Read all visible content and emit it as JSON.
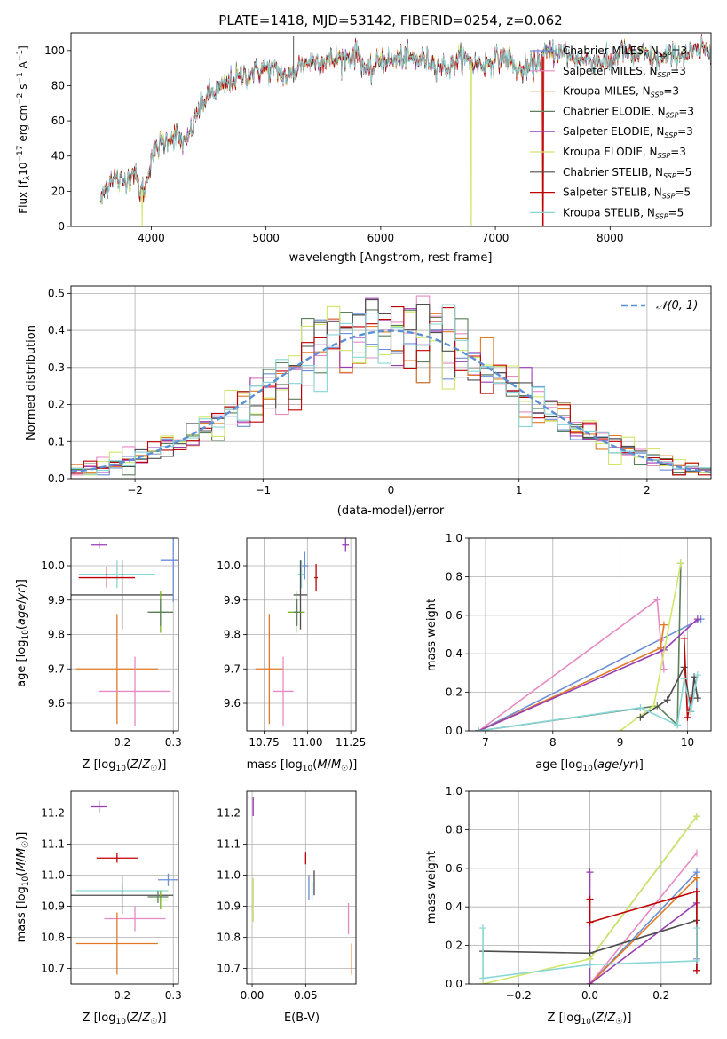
{
  "figure": {
    "title": "PLATE=1418, MJD=53142, FIBERID=0254, z=0.062"
  },
  "colors": {
    "chabrier_miles": "#6a8fd8",
    "salpeter_miles": "#e78ac3",
    "kroupa_miles": "#e07b24",
    "chabrier_elodie": "#5c7f5c",
    "salpeter_elodie": "#9a3db3",
    "kroupa_elodie": "#cfe86a",
    "chabrier_stelib": "#4d4d4d",
    "salpeter_stelib": "#c00000",
    "kroupa_stelib": "#88d6d6",
    "normal_curve": "#5b8fd6",
    "lime": "#7ab51d"
  },
  "chart_data": [
    {
      "id": "spectrum",
      "type": "line",
      "title": "PLATE=1418, MJD=53142, FIBERID=0254, z=0.062",
      "xlabel": "wavelength [Angstrom, rest frame]",
      "ylabel": "Flux [f_λ10^-17 erg cm^-2 s^-1 A^-1]",
      "xlim": [
        3300,
        8880
      ],
      "ylim": [
        0,
        110
      ],
      "xticks": [
        4000,
        5000,
        6000,
        7000,
        8000
      ],
      "yticks": [
        0,
        20,
        40,
        60,
        80,
        100
      ],
      "legend_position": "top-right",
      "legend": [
        "Chabrier MILES, N_SSP=3",
        "Salpeter MILES, N_SSP=3",
        "Kroupa MILES, N_SSP=3",
        "Chabrier ELODIE, N_SSP=3",
        "Salpeter ELODIE, N_SSP=3",
        "Kroupa ELODIE, N_SSP=3",
        "Chabrier STELIB, N_SSP=5",
        "Salpeter STELIB, N_SSP=5",
        "Kroupa STELIB, N_SSP=5"
      ],
      "continuum": {
        "x": [
          3560,
          3650,
          3750,
          3850,
          3900,
          3950,
          4000,
          4100,
          4200,
          4300,
          4400,
          4500,
          4600,
          4700,
          4800,
          4900,
          5000,
          5100,
          5200,
          5300,
          5400,
          5500,
          5600,
          5700,
          5800,
          5900,
          6000,
          6100,
          6200,
          6300,
          6400,
          6500,
          6600,
          6700,
          6800,
          6900,
          7000,
          7100,
          7200,
          7300,
          7400,
          7500,
          7600,
          7700,
          7800,
          7900,
          8000,
          8100,
          8200,
          8300,
          8400,
          8500,
          8600,
          8700,
          8800,
          8880
        ],
        "y": [
          15,
          28,
          25,
          32,
          20,
          22,
          40,
          48,
          52,
          46,
          65,
          75,
          78,
          82,
          86,
          88,
          90,
          88,
          84,
          92,
          94,
          94,
          95,
          96,
          98,
          86,
          96,
          94,
          96,
          95,
          95,
          92,
          90,
          96,
          93,
          92,
          95,
          96,
          88,
          90,
          96,
          100,
          98,
          96,
          95,
          94,
          92,
          100,
          96,
          98,
          94,
          96,
          98,
          98,
          100,
          100
        ]
      },
      "dropouts": [
        {
          "series": "Kroupa ELODIE, N_SSP=3",
          "x": 3920
        },
        {
          "series": "Kroupa ELODIE, N_SSP=3",
          "x": 6790
        },
        {
          "series": "Salpeter STELIB, N_SSP=5",
          "x": 7415
        }
      ],
      "spike": {
        "x": 5240,
        "y": 108
      }
    },
    {
      "id": "residuals",
      "type": "histogram",
      "xlabel": "(data-model)/error",
      "ylabel": "Normed distribution",
      "xlim": [
        -2.5,
        2.5
      ],
      "ylim": [
        0,
        0.52
      ],
      "xticks": [
        -2,
        -1,
        0,
        1,
        2
      ],
      "yticks": [
        0.0,
        0.1,
        0.2,
        0.3,
        0.4,
        0.5
      ],
      "bin_width": 0.1,
      "legend": [
        "𝒩(0, 1)"
      ],
      "legend_position": "top-right",
      "grid": true
    },
    {
      "id": "age_vs_Z",
      "type": "errorbar",
      "xlabel": "Z [log10(Z/Z☉)]",
      "ylabel": "age  [log10(age/yr)]",
      "xlim": [
        0.1,
        0.31
      ],
      "ylim": [
        9.52,
        10.08
      ],
      "xticks": [
        0.2,
        0.3
      ],
      "yticks": [
        9.6,
        9.7,
        9.8,
        9.9,
        10.0
      ],
      "points": [
        {
          "series": "salpeter_elodie",
          "x": 0.155,
          "y": 10.06,
          "xerr": 0.015,
          "yerr": 0.01
        },
        {
          "series": "kroupa_stelib",
          "x": 0.19,
          "y": 9.975,
          "xerr": 0.075,
          "yerr": 0.04
        },
        {
          "series": "salpeter_stelib",
          "x": 0.17,
          "y": 9.965,
          "xerr": 0.055,
          "yerr": 0.03
        },
        {
          "series": "chabrier_stelib",
          "x": 0.2,
          "y": 9.915,
          "xerr": 0.1,
          "yerr": 0.1
        },
        {
          "series": "chabrier_miles",
          "x": 0.3,
          "y": 10.015,
          "xerr": 0.025,
          "yerr": 0.12
        },
        {
          "series": "lime",
          "x": 0.275,
          "y": 9.865,
          "xerr": 0.015,
          "yerr": 0.06
        },
        {
          "series": "chabrier_elodie",
          "x": 0.275,
          "y": 9.865,
          "xerr": 0.025,
          "yerr": 0.04
        },
        {
          "series": "kroupa_miles",
          "x": 0.19,
          "y": 9.7,
          "xerr": 0.08,
          "yerr": 0.16
        },
        {
          "series": "salpeter_miles",
          "x": 0.225,
          "y": 9.635,
          "xerr": 0.07,
          "yerr": 0.1
        }
      ]
    },
    {
      "id": "age_vs_mass",
      "type": "errorbar",
      "xlabel": "mass [log10(M/M☉)]",
      "ylim": [
        9.52,
        10.08
      ],
      "xlim": [
        10.65,
        11.28
      ],
      "xticks": [
        10.75,
        11.0,
        11.25
      ],
      "yticks": [
        9.6,
        9.7,
        9.8,
        9.9,
        10.0
      ],
      "points": [
        {
          "series": "salpeter_elodie",
          "x": 11.22,
          "y": 10.06,
          "xerr": 0.02,
          "yerr": 0.02
        },
        {
          "series": "chabrier_miles",
          "x": 10.985,
          "y": 10.0,
          "xerr": 0.02,
          "yerr": 0.04
        },
        {
          "series": "kroupa_stelib",
          "x": 10.965,
          "y": 9.975,
          "xerr": 0.02,
          "yerr": 0.04
        },
        {
          "series": "salpeter_stelib",
          "x": 11.05,
          "y": 9.965,
          "xerr": 0.01,
          "yerr": 0.04
        },
        {
          "series": "chabrier_stelib",
          "x": 10.96,
          "y": 9.915,
          "xerr": 0.04,
          "yerr": 0.1
        },
        {
          "series": "lime",
          "x": 10.935,
          "y": 9.865,
          "xerr": 0.05,
          "yerr": 0.06
        },
        {
          "series": "chabrier_elodie",
          "x": 10.94,
          "y": 9.865,
          "xerr": 0.02,
          "yerr": 0.04
        },
        {
          "series": "kroupa_miles",
          "x": 10.78,
          "y": 9.7,
          "xerr": 0.08,
          "yerr": 0.16
        },
        {
          "series": "salpeter_miles",
          "x": 10.86,
          "y": 9.635,
          "xerr": 0.06,
          "yerr": 0.1
        }
      ]
    },
    {
      "id": "weight_vs_age",
      "type": "line",
      "xlabel": "age  [log10(age/yr)]",
      "ylabel": "mass weight",
      "xlim": [
        6.75,
        10.35
      ],
      "ylim": [
        0,
        1
      ],
      "xticks": [
        7,
        8,
        9,
        10
      ],
      "yticks": [
        0.0,
        0.2,
        0.4,
        0.6,
        0.8,
        1.0
      ],
      "series": [
        {
          "name": "chabrier_miles",
          "x": [
            6.9,
            10.2
          ],
          "y": [
            0.0,
            0.58
          ]
        },
        {
          "name": "salpeter_miles",
          "x": [
            6.9,
            9.55,
            9.6,
            9.65
          ],
          "y": [
            0.0,
            0.68,
            0.47,
            0.32
          ]
        },
        {
          "name": "kroupa_miles",
          "x": [
            6.9,
            9.6,
            9.65
          ],
          "y": [
            0.0,
            0.43,
            0.55
          ]
        },
        {
          "name": "chabrier_elodie",
          "x": [
            6.9,
            9.55,
            9.85,
            9.9
          ],
          "y": [
            0.0,
            0.13,
            0.03,
            0.87
          ]
        },
        {
          "name": "salpeter_elodie",
          "x": [
            6.9,
            9.65,
            10.15
          ],
          "y": [
            0.0,
            0.42,
            0.58
          ]
        },
        {
          "name": "kroupa_elodie",
          "x": [
            9.0,
            9.5,
            9.9
          ],
          "y": [
            0.0,
            0.13,
            0.87
          ]
        },
        {
          "name": "chabrier_stelib",
          "x": [
            9.3,
            9.7,
            9.95,
            10.05,
            10.1,
            10.15
          ],
          "y": [
            0.07,
            0.16,
            0.33,
            0.1,
            0.28,
            0.17
          ]
        },
        {
          "name": "salpeter_stelib",
          "x": [
            9.95,
            10.0,
            10.05
          ],
          "y": [
            0.48,
            0.07,
            0.17
          ]
        },
        {
          "name": "kroupa_stelib",
          "x": [
            6.9,
            9.3,
            9.85,
            9.95,
            10.05,
            10.15
          ],
          "y": [
            0.0,
            0.12,
            0.03,
            0.27,
            0.1,
            0.29
          ]
        }
      ]
    },
    {
      "id": "mass_vs_Z",
      "type": "errorbar",
      "xlabel": "Z [log10(Z/Z☉)]",
      "ylabel": "mass [log10(M/M☉)]",
      "xlim": [
        0.1,
        0.31
      ],
      "ylim": [
        10.65,
        11.27
      ],
      "xticks": [
        0.2,
        0.3
      ],
      "yticks": [
        10.7,
        10.8,
        10.9,
        11.0,
        11.1,
        11.2
      ],
      "points": [
        {
          "series": "salpeter_elodie",
          "x": 0.155,
          "y": 11.22,
          "xerr": 0.015,
          "yerr": 0.02
        },
        {
          "series": "salpeter_stelib",
          "x": 0.19,
          "y": 11.055,
          "xerr": 0.04,
          "yerr": 0.015
        },
        {
          "series": "chabrier_miles",
          "x": 0.29,
          "y": 10.985,
          "xerr": 0.02,
          "yerr": 0.02
        },
        {
          "series": "kroupa_stelib",
          "x": 0.2,
          "y": 10.95,
          "xerr": 0.09,
          "yerr": 0.02
        },
        {
          "series": "chabrier_stelib",
          "x": 0.2,
          "y": 10.935,
          "xerr": 0.1,
          "yerr": 0.06
        },
        {
          "series": "lime",
          "x": 0.275,
          "y": 10.92,
          "xerr": 0.015,
          "yerr": 0.03
        },
        {
          "series": "chabrier_elodie",
          "x": 0.27,
          "y": 10.93,
          "xerr": 0.02,
          "yerr": 0.02
        },
        {
          "series": "salpeter_miles",
          "x": 0.225,
          "y": 10.86,
          "xerr": 0.06,
          "yerr": 0.04
        },
        {
          "series": "kroupa_miles",
          "x": 0.19,
          "y": 10.78,
          "xerr": 0.08,
          "yerr": 0.1
        }
      ]
    },
    {
      "id": "mass_vs_ebv",
      "type": "errorbar",
      "xlabel": "E(B-V)",
      "xlim": [
        -0.005,
        0.097
      ],
      "ylim": [
        10.65,
        11.27
      ],
      "xticks": [
        0.0,
        0.05
      ],
      "yticks": [
        10.7,
        10.8,
        10.9,
        11.0,
        11.1,
        11.2
      ],
      "points": [
        {
          "series": "salpeter_elodie",
          "x": 0.001,
          "y": 11.22,
          "xerr": 0.0,
          "yerr": 0.03
        },
        {
          "series": "salpeter_stelib",
          "x": 0.05,
          "y": 11.055,
          "xerr": 0.0,
          "yerr": 0.02
        },
        {
          "series": "chabrier_miles",
          "x": 0.053,
          "y": 10.96,
          "xerr": 0.0,
          "yerr": 0.04
        },
        {
          "series": "chabrier_stelib",
          "x": 0.058,
          "y": 10.975,
          "xerr": 0.0,
          "yerr": 0.04
        },
        {
          "series": "kroupa_stelib",
          "x": 0.056,
          "y": 10.95,
          "xerr": 0.0,
          "yerr": 0.03
        },
        {
          "series": "kroupa_elodie",
          "x": 0.001,
          "y": 10.92,
          "xerr": 0.0,
          "yerr": 0.07
        },
        {
          "series": "salpeter_miles",
          "x": 0.09,
          "y": 10.86,
          "xerr": 0.0,
          "yerr": 0.05
        },
        {
          "series": "kroupa_miles",
          "x": 0.093,
          "y": 10.73,
          "xerr": 0.0,
          "yerr": 0.05
        }
      ]
    },
    {
      "id": "weight_vs_Z",
      "type": "line",
      "xlabel": "Z [log10(Z/Z☉)]",
      "ylabel": "mass weight",
      "xlim": [
        -0.34,
        0.34
      ],
      "ylim": [
        0,
        1
      ],
      "xticks": [
        -0.2,
        0.0,
        0.2
      ],
      "yticks": [
        0.0,
        0.2,
        0.4,
        0.6,
        0.8,
        1.0
      ],
      "series": [
        {
          "name": "chabrier_miles",
          "x": [
            0.0,
            0.3,
            0.3
          ],
          "y": [
            0.0,
            0.58,
            0.13
          ]
        },
        {
          "name": "salpeter_miles",
          "x": [
            0.0,
            0.3
          ],
          "y": [
            0.0,
            0.68
          ]
        },
        {
          "name": "kroupa_miles",
          "x": [
            0.0,
            0.3
          ],
          "y": [
            0.0,
            0.55
          ]
        },
        {
          "name": "chabrier_elodie",
          "x": [
            0.0,
            0.3
          ],
          "y": [
            0.13,
            0.87
          ]
        },
        {
          "name": "salpeter_elodie",
          "x": [
            0.0,
            0.0,
            0.3
          ],
          "y": [
            0.58,
            0.0,
            0.42
          ]
        },
        {
          "name": "kroupa_elodie",
          "x": [
            -0.3,
            0.0,
            0.3
          ],
          "y": [
            0.0,
            0.13,
            0.87
          ]
        },
        {
          "name": "chabrier_stelib",
          "x": [
            -0.3,
            0.0,
            0.3,
            0.3
          ],
          "y": [
            0.17,
            0.16,
            0.33,
            0.07
          ]
        },
        {
          "name": "salpeter_stelib",
          "x": [
            0.0,
            0.0,
            0.3,
            0.3
          ],
          "y": [
            0.44,
            0.32,
            0.48,
            0.07
          ]
        },
        {
          "name": "kroupa_stelib",
          "x": [
            -0.3,
            -0.3,
            0.0,
            0.3,
            0.3
          ],
          "y": [
            0.29,
            0.03,
            0.1,
            0.12,
            0.29
          ]
        }
      ]
    }
  ]
}
